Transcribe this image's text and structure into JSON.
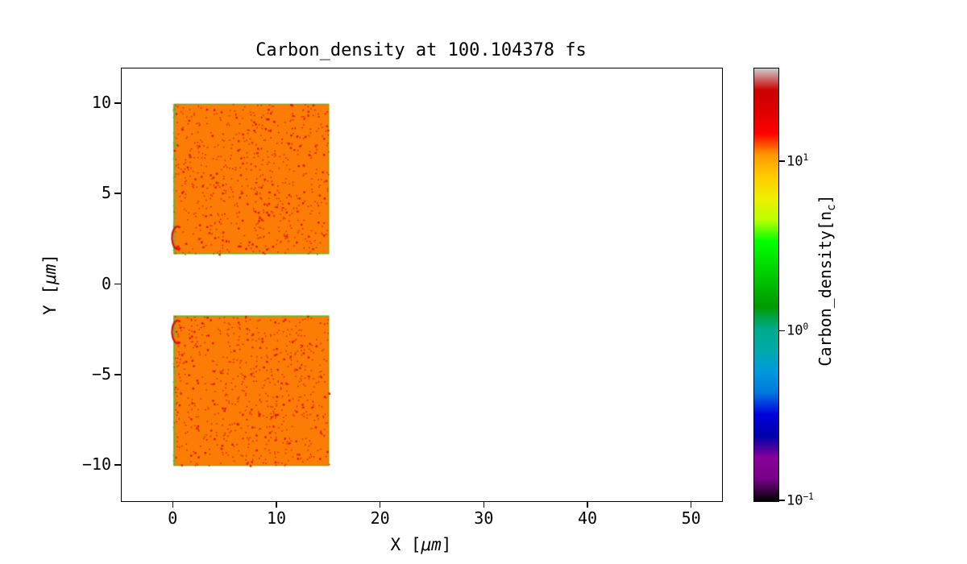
{
  "chart_data": {
    "type": "heatmap",
    "title": "Carbon_density at 100.104378 fs",
    "xlabel": "X [μm]",
    "xlabel_parts": {
      "pre": "X [",
      "unit": "μm",
      "post": "]"
    },
    "ylabel": "Y [μm]",
    "ylabel_parts": {
      "pre": "Y [",
      "unit": "μm",
      "post": "]"
    },
    "xlim": [
      -5.0,
      52.9
    ],
    "ylim": [
      -11.95,
      11.95
    ],
    "xtick_values": [
      0,
      10,
      20,
      30,
      40,
      50
    ],
    "xticks": [
      "0",
      "10",
      "20",
      "30",
      "40",
      "50"
    ],
    "ytick_values": [
      10,
      5,
      0,
      -5,
      -10
    ],
    "yticks": [
      "10",
      "5",
      "0",
      "−5",
      "−10"
    ],
    "grid": false,
    "legend": false,
    "blocks": [
      {
        "x0": 0,
        "x1": 15.0,
        "y0": 1.7,
        "y1": 10,
        "value_nc": 10,
        "fill": "#fb7d05"
      },
      {
        "x0": 0,
        "x1": 15.0,
        "y0": -10,
        "y1": -1.7,
        "value_nc": 10,
        "fill": "#fb7d05"
      }
    ],
    "front_arcs": [
      {
        "x": 0.4,
        "y": 2.6
      },
      {
        "x": 0.4,
        "y": -2.6
      }
    ],
    "noise": {
      "speckle_color": "#dd1404",
      "edge_color": "#55b82a",
      "speckles_per_block": 700,
      "edge_flecks_per_block": 70
    },
    "colorbar": {
      "label": "Carbon_density[n_c]",
      "label_parts": {
        "pre": "Carbon_density[n",
        "sub": "c",
        "post": "]"
      },
      "scale": "log",
      "colormap": "nipy_spectral",
      "tick_values": [
        10,
        1,
        0.1
      ],
      "ticks": [
        {
          "base": "10",
          "exp": "1"
        },
        {
          "base": "10",
          "exp": "0"
        },
        {
          "base": "10",
          "exp": "−1"
        }
      ],
      "range_log10": [
        -1.0,
        1.55
      ],
      "gradient": [
        {
          "pos": 0,
          "color": "#000000"
        },
        {
          "pos": 5,
          "color": "#770088"
        },
        {
          "pos": 10,
          "color": "#880099"
        },
        {
          "pos": 15,
          "color": "#0000aa"
        },
        {
          "pos": 20,
          "color": "#0000dd"
        },
        {
          "pos": 25,
          "color": "#0077dd"
        },
        {
          "pos": 30,
          "color": "#0099dd"
        },
        {
          "pos": 35,
          "color": "#00aaaa"
        },
        {
          "pos": 40,
          "color": "#00aa88"
        },
        {
          "pos": 45,
          "color": "#009900"
        },
        {
          "pos": 50,
          "color": "#00bb00"
        },
        {
          "pos": 55,
          "color": "#00dd00"
        },
        {
          "pos": 60,
          "color": "#00ff00"
        },
        {
          "pos": 65,
          "color": "#bbff00"
        },
        {
          "pos": 70,
          "color": "#eeee00"
        },
        {
          "pos": 75,
          "color": "#ffcc00"
        },
        {
          "pos": 80,
          "color": "#ff9900"
        },
        {
          "pos": 85,
          "color": "#ff0000"
        },
        {
          "pos": 90,
          "color": "#dd0000"
        },
        {
          "pos": 95,
          "color": "#cc0000"
        },
        {
          "pos": 100,
          "color": "#cccccc"
        }
      ]
    }
  }
}
